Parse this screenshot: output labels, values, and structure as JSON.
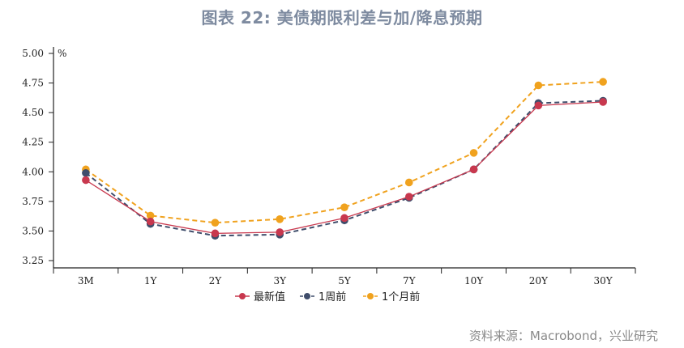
{
  "title": "图表 22: 美债期限利差与加/降息预期",
  "source": "资料来源：Macrobond，兴业研究",
  "chart_data": {
    "type": "line",
    "title": "图表 22: 美债期限利差与加/降息预期",
    "xlabel": "",
    "ylabel": "%",
    "categories": [
      "3M",
      "1Y",
      "2Y",
      "3Y",
      "5Y",
      "7Y",
      "10Y",
      "20Y",
      "30Y"
    ],
    "yticks": [
      "5.00",
      "4.75",
      "4.50",
      "4.25",
      "4.00",
      "3.75",
      "3.50",
      "3.25"
    ],
    "ylim": [
      3.19,
      5.05
    ],
    "grid": false,
    "legend_position": "bottom",
    "series": [
      {
        "name": "最新值",
        "color": "#c8384e",
        "style": "solid",
        "values": [
          3.93,
          3.58,
          3.48,
          3.49,
          3.61,
          3.79,
          4.02,
          4.56,
          4.59
        ]
      },
      {
        "name": "1周前",
        "color": "#3f4d6b",
        "style": "dashed",
        "values": [
          3.99,
          3.56,
          3.46,
          3.47,
          3.59,
          3.78,
          4.02,
          4.58,
          4.6
        ]
      },
      {
        "name": "1个月前",
        "color": "#f0a21e",
        "style": "dashed",
        "values": [
          4.02,
          3.63,
          3.57,
          3.6,
          3.7,
          3.91,
          4.16,
          4.73,
          4.76
        ]
      }
    ]
  }
}
